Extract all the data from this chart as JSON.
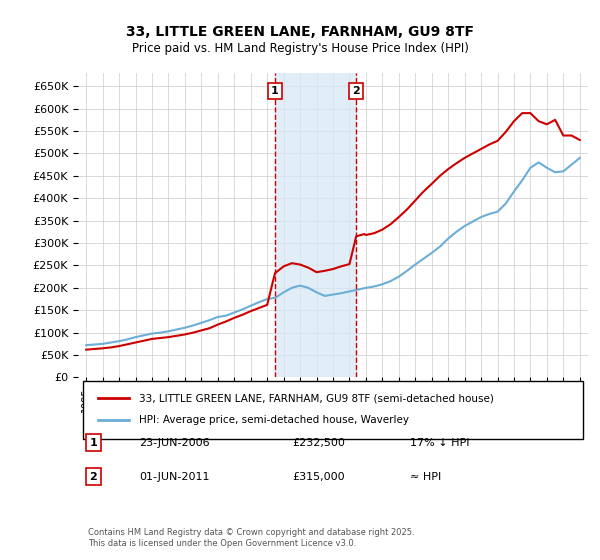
{
  "title": "33, LITTLE GREEN LANE, FARNHAM, GU9 8TF",
  "subtitle": "Price paid vs. HM Land Registry's House Price Index (HPI)",
  "ylabel_ticks": [
    0,
    50000,
    100000,
    150000,
    200000,
    250000,
    300000,
    350000,
    400000,
    450000,
    500000,
    550000,
    600000,
    650000
  ],
  "ylim": [
    0,
    680000
  ],
  "xlim_start": 1994.5,
  "xlim_end": 2025.5,
  "xticks": [
    1995,
    1996,
    1997,
    1998,
    1999,
    2000,
    2001,
    2002,
    2003,
    2004,
    2005,
    2006,
    2007,
    2008,
    2009,
    2010,
    2011,
    2012,
    2013,
    2014,
    2015,
    2016,
    2017,
    2018,
    2019,
    2020,
    2021,
    2022,
    2023,
    2024,
    2025
  ],
  "hpi_color": "#6baed6",
  "price_color": "#cc0000",
  "vline1_x": 2006.47,
  "vline2_x": 2011.41,
  "shade_color": "#d6e8f5",
  "legend_label1": "33, LITTLE GREEN LANE, FARNHAM, GU9 8TF (semi-detached house)",
  "legend_label2": "HPI: Average price, semi-detached house, Waverley",
  "table_rows": [
    {
      "num": "1",
      "date": "23-JUN-2006",
      "price": "£232,500",
      "note": "17% ↓ HPI"
    },
    {
      "num": "2",
      "date": "01-JUN-2011",
      "price": "£315,000",
      "note": "≈ HPI"
    }
  ],
  "footer": "Contains HM Land Registry data © Crown copyright and database right 2025.\nThis data is licensed under the Open Government Licence v3.0.",
  "background_color": "#ffffff",
  "grid_color": "#cccccc",
  "hpi_years": [
    1995,
    1995.5,
    1996,
    1996.5,
    1997,
    1997.5,
    1998,
    1998.5,
    1999,
    1999.5,
    2000,
    2000.5,
    2001,
    2001.5,
    2002,
    2002.5,
    2003,
    2003.5,
    2004,
    2004.5,
    2005,
    2005.5,
    2006,
    2006.5,
    2007,
    2007.5,
    2008,
    2008.5,
    2009,
    2009.5,
    2010,
    2010.5,
    2011,
    2011.5,
    2012,
    2012.5,
    2013,
    2013.5,
    2014,
    2014.5,
    2015,
    2015.5,
    2016,
    2016.5,
    2017,
    2017.5,
    2018,
    2018.5,
    2019,
    2019.5,
    2020,
    2020.5,
    2021,
    2021.5,
    2022,
    2022.5,
    2023,
    2023.5,
    2024,
    2024.5,
    2025
  ],
  "hpi_values": [
    72000,
    73500,
    75000,
    78000,
    81000,
    85000,
    90000,
    94000,
    98000,
    100000,
    103000,
    107000,
    111000,
    116000,
    122000,
    128000,
    135000,
    138000,
    145000,
    152000,
    160000,
    168000,
    175000,
    178000,
    190000,
    200000,
    205000,
    200000,
    190000,
    182000,
    185000,
    188000,
    192000,
    196000,
    200000,
    203000,
    208000,
    215000,
    225000,
    238000,
    252000,
    265000,
    278000,
    292000,
    310000,
    325000,
    338000,
    348000,
    358000,
    365000,
    370000,
    388000,
    415000,
    440000,
    468000,
    480000,
    468000,
    458000,
    460000,
    475000,
    490000
  ],
  "price_years": [
    1995,
    1995.5,
    1996,
    1996.5,
    1997,
    1997.5,
    1998,
    1998.5,
    1999,
    1999.5,
    2000,
    2000.5,
    2001,
    2001.5,
    2002,
    2002.5,
    2003,
    2003.5,
    2004,
    2004.5,
    2005,
    2005.5,
    2006,
    2006.47,
    2006.9,
    2007,
    2007.5,
    2008,
    2008.5,
    2009,
    2009.5,
    2010,
    2010.5,
    2011,
    2011.41,
    2011.9,
    2012,
    2012.5,
    2013,
    2013.5,
    2014,
    2014.5,
    2015,
    2015.5,
    2016,
    2016.5,
    2017,
    2017.5,
    2018,
    2018.5,
    2019,
    2019.5,
    2020,
    2020.5,
    2021,
    2021.5,
    2022,
    2022.5,
    2023,
    2023.5,
    2024,
    2024.5,
    2025
  ],
  "price_values": [
    62000,
    63500,
    65000,
    67000,
    70000,
    74000,
    78000,
    82000,
    86000,
    88000,
    90000,
    93000,
    96000,
    100000,
    105000,
    110000,
    118000,
    125000,
    133000,
    140000,
    148000,
    155000,
    162000,
    232500,
    245000,
    248000,
    255000,
    252000,
    245000,
    235000,
    238000,
    242000,
    248000,
    253000,
    315000,
    320000,
    318000,
    322000,
    330000,
    342000,
    358000,
    375000,
    395000,
    415000,
    432000,
    450000,
    465000,
    478000,
    490000,
    500000,
    510000,
    520000,
    528000,
    548000,
    572000,
    590000,
    590000,
    572000,
    565000,
    575000,
    540000,
    540000,
    530000
  ]
}
